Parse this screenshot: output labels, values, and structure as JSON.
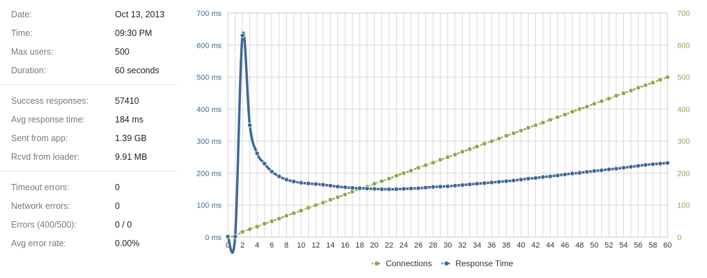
{
  "stats": {
    "groups": [
      [
        {
          "label": "Date:",
          "value": "Oct 13, 2013"
        },
        {
          "label": "Time:",
          "value": "09:30 PM"
        },
        {
          "label": "Max users:",
          "value": "500"
        },
        {
          "label": "Duration:",
          "value": "60 seconds"
        }
      ],
      [
        {
          "label": "Success responses:",
          "value": "57410"
        },
        {
          "label": "Avg response time:",
          "value": "184 ms"
        },
        {
          "label": "Sent from app:",
          "value": "1.39 GB"
        },
        {
          "label": "Rcvd from loader:",
          "value": "9.91 MB"
        }
      ],
      [
        {
          "label": "Timeout errors:",
          "value": "0"
        },
        {
          "label": "Network errors:",
          "value": "0"
        },
        {
          "label": "Errors (400/500):",
          "value": "0 / 0"
        },
        {
          "label": "Avg error rate:",
          "value": "0.00%"
        }
      ]
    ]
  },
  "chart_data": {
    "type": "line",
    "x": [
      0,
      1,
      2,
      3,
      4,
      5,
      6,
      7,
      8,
      9,
      10,
      11,
      12,
      13,
      14,
      15,
      16,
      17,
      18,
      19,
      20,
      21,
      22,
      23,
      24,
      25,
      26,
      27,
      28,
      29,
      30,
      31,
      32,
      33,
      34,
      35,
      36,
      37,
      38,
      39,
      40,
      41,
      42,
      43,
      44,
      45,
      46,
      47,
      48,
      49,
      50,
      51,
      52,
      53,
      54,
      55,
      56,
      57,
      58,
      59,
      60
    ],
    "xlim": [
      0,
      60
    ],
    "x_ticks": [
      0,
      2,
      4,
      6,
      8,
      10,
      12,
      14,
      16,
      18,
      20,
      22,
      24,
      26,
      28,
      30,
      32,
      34,
      36,
      38,
      40,
      42,
      44,
      46,
      48,
      50,
      52,
      54,
      56,
      58,
      60
    ],
    "y_left": {
      "lim": [
        0,
        700
      ],
      "ticks": [
        0,
        100,
        200,
        300,
        400,
        500,
        600,
        700
      ],
      "tick_labels": [
        "0 ms",
        "100 ms",
        "200 ms",
        "300 ms",
        "400 ms",
        "500 ms",
        "600 ms",
        "700 ms"
      ]
    },
    "y_right": {
      "lim": [
        0,
        700
      ],
      "ticks": [
        0,
        100,
        200,
        300,
        400,
        500,
        600,
        700
      ],
      "tick_labels": [
        "0",
        "100",
        "200",
        "300",
        "400",
        "500",
        "600",
        "700"
      ]
    },
    "grid": true,
    "legend": "bottom-center",
    "series": [
      {
        "name": "Connections",
        "axis": "right",
        "color": "#8fa84a",
        "values": [
          0,
          3,
          17,
          25,
          33,
          42,
          50,
          58,
          67,
          75,
          83,
          92,
          100,
          108,
          117,
          125,
          133,
          142,
          150,
          158,
          167,
          175,
          183,
          192,
          200,
          208,
          217,
          225,
          233,
          242,
          250,
          258,
          267,
          275,
          283,
          292,
          300,
          308,
          317,
          325,
          333,
          342,
          350,
          358,
          367,
          375,
          383,
          392,
          400,
          408,
          417,
          425,
          433,
          442,
          450,
          458,
          467,
          475,
          483,
          492,
          500
        ]
      },
      {
        "name": "Response Time",
        "axis": "left",
        "color": "#3f6896",
        "values": [
          2,
          2,
          630,
          350,
          262,
          230,
          205,
          190,
          180,
          174,
          170,
          168,
          166,
          164,
          161,
          158,
          156,
          154,
          153,
          152,
          151,
          150,
          150,
          150,
          151,
          152,
          153,
          155,
          157,
          158,
          159,
          161,
          163,
          165,
          167,
          169,
          171,
          173,
          175,
          177,
          180,
          183,
          185,
          188,
          190,
          193,
          196,
          199,
          201,
          204,
          207,
          209,
          212,
          214,
          217,
          220,
          223,
          226,
          228,
          230,
          232
        ]
      }
    ]
  }
}
